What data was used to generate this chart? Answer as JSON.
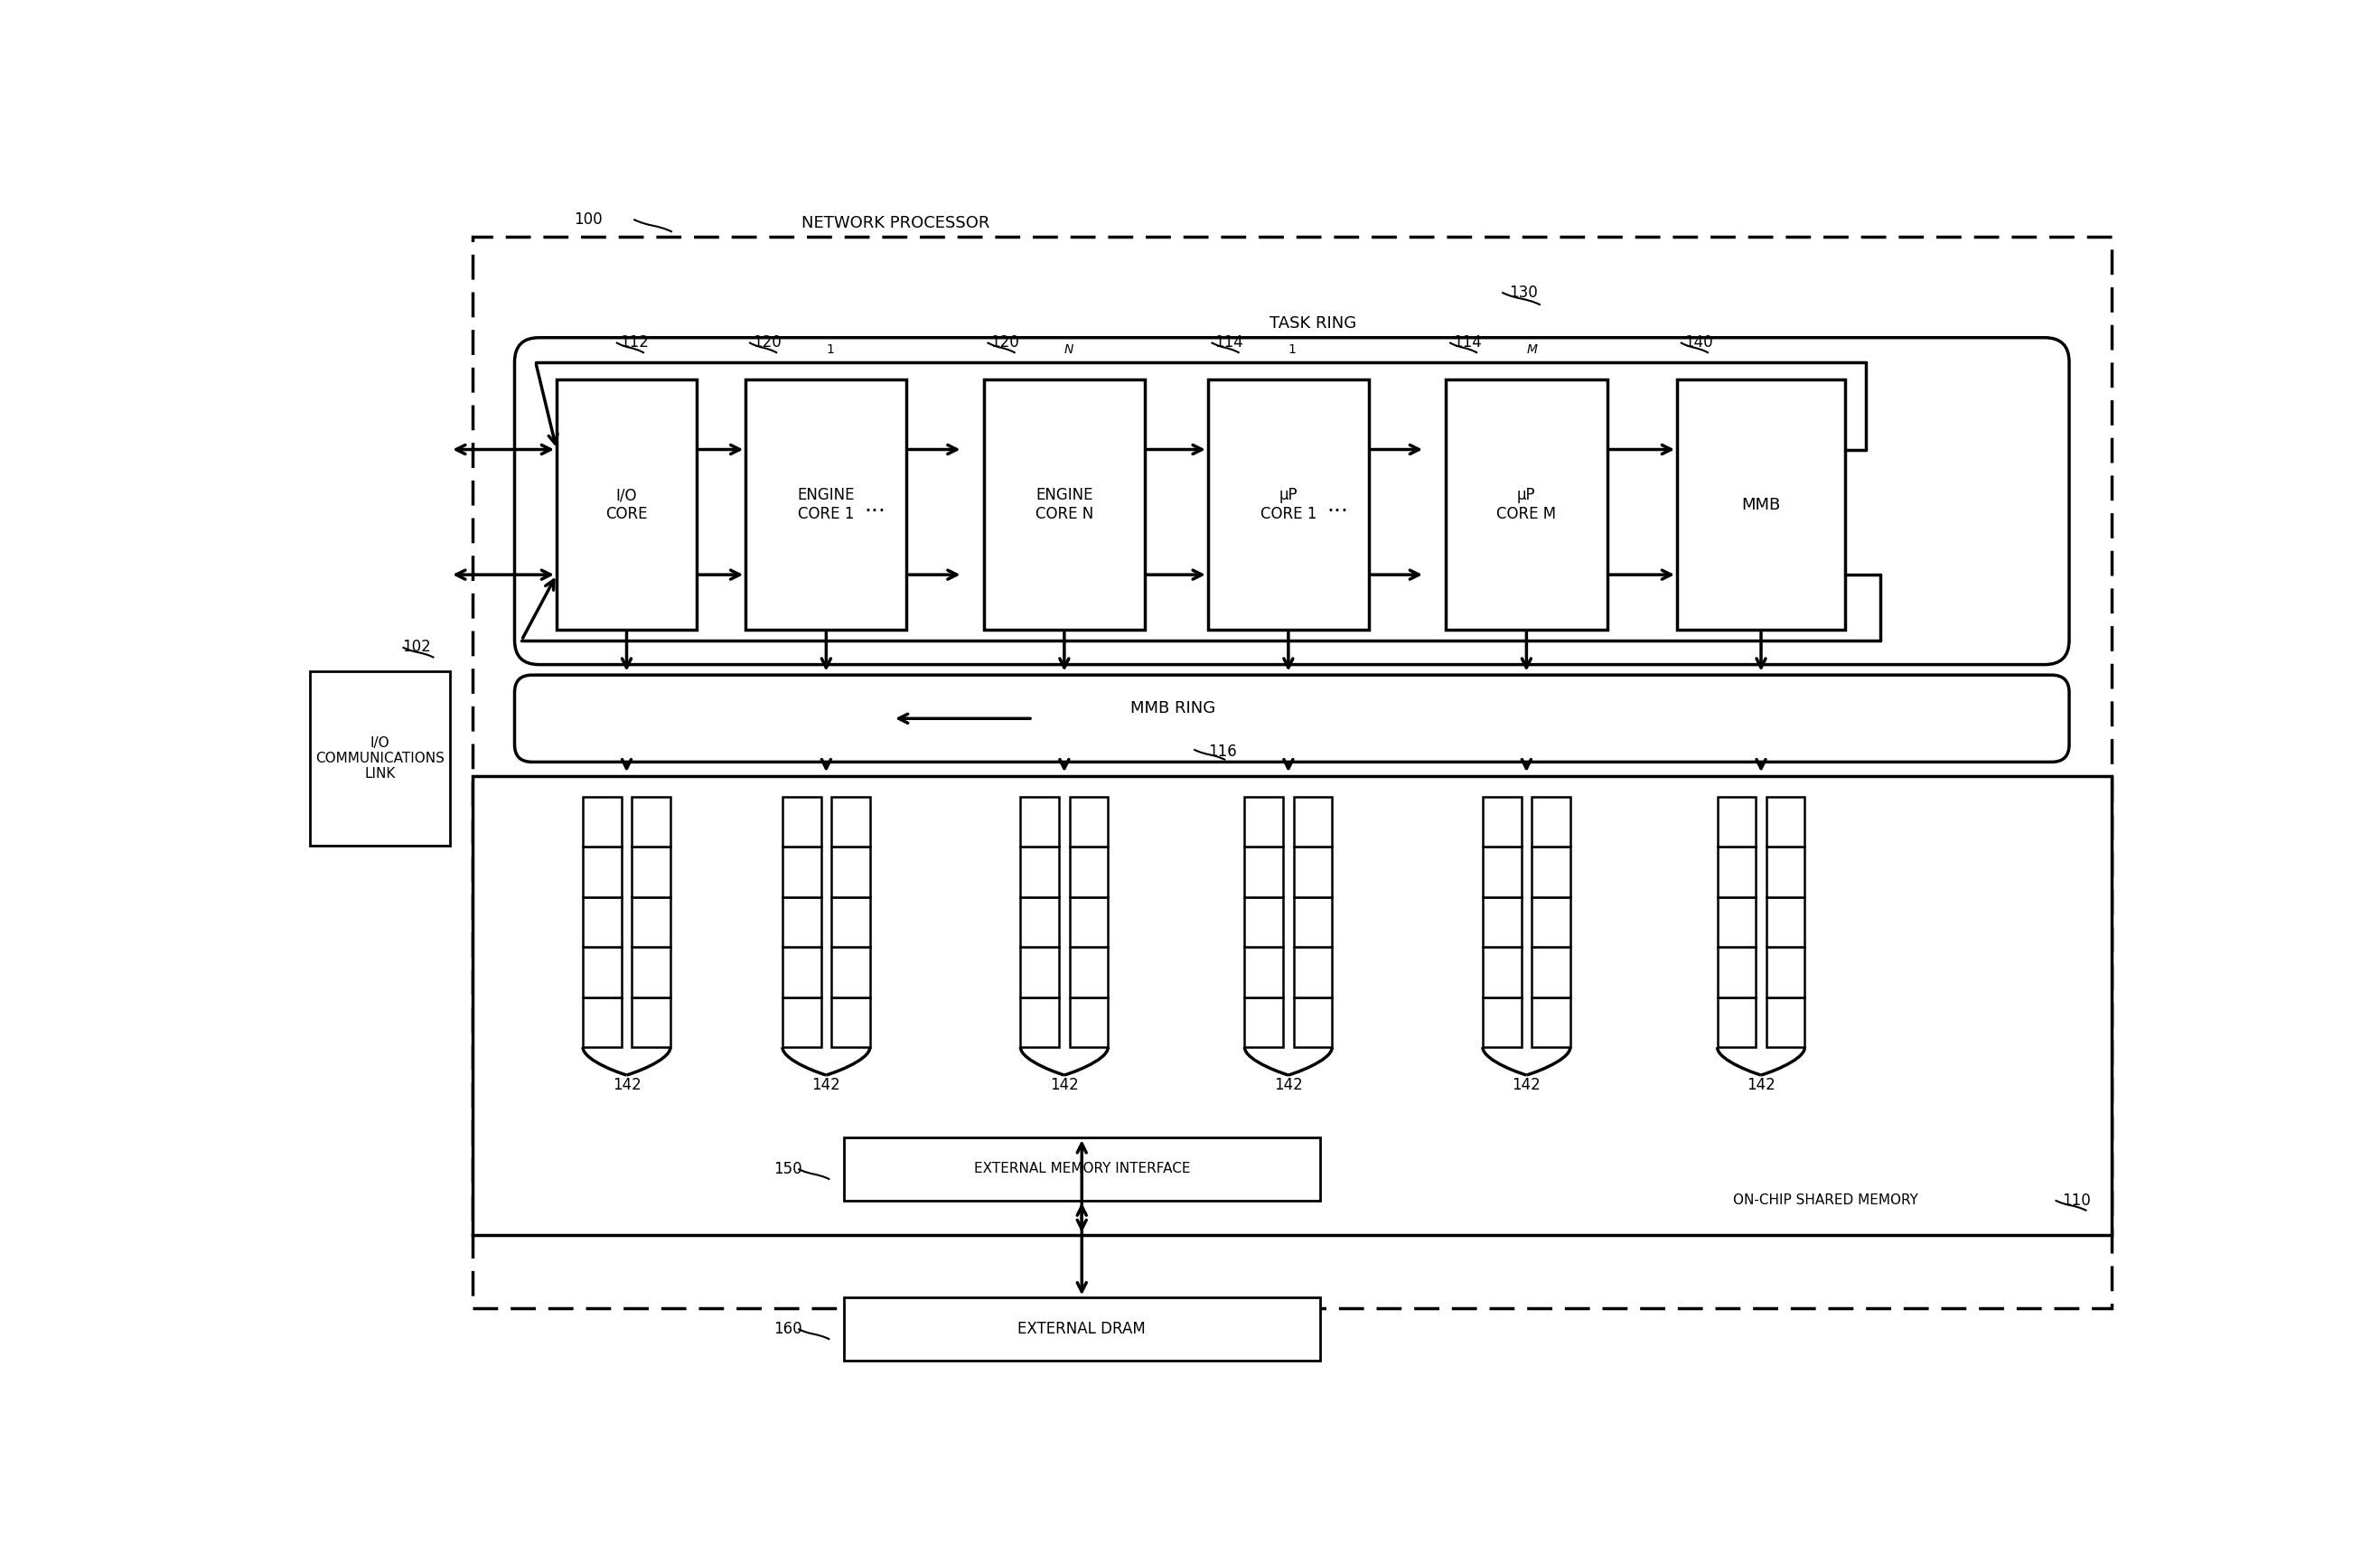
{
  "bg_color": "#ffffff",
  "fig_width": 26.34,
  "fig_height": 17.09,
  "labels": {
    "network_processor": "NETWORK PROCESSOR",
    "io_comm_link": "I/O\nCOMMUNICATIONS\nLINK",
    "io_core": "I/O\nCORE",
    "engine_core_1": "ENGINE\nCORE 1",
    "engine_core_n": "ENGINE\nCORE N",
    "up_core_1": "μP\nCORE 1",
    "up_core_m": "μP\nCORE M",
    "mmb": "MMB",
    "task_ring": "TASK RING",
    "mmb_ring": "MMB RING",
    "ext_mem_iface": "EXTERNAL MEMORY INTERFACE",
    "on_chip_mem": "ON-CHIP SHARED MEMORY",
    "ext_dram": "EXTERNAL DRAM",
    "ref_100": "100",
    "ref_102": "102",
    "ref_112": "112",
    "ref_120_1": "120",
    "ref_120_1_sub": "1",
    "ref_120_n": "120",
    "ref_120_n_sub": "N",
    "ref_114_1": "114",
    "ref_114_1_sub": "1",
    "ref_114_m": "114",
    "ref_114_m_sub": "M",
    "ref_140": "140",
    "ref_130": "130",
    "ref_116": "116",
    "ref_110": "110",
    "ref_142": "142",
    "ref_150": "150",
    "ref_160": "160"
  }
}
